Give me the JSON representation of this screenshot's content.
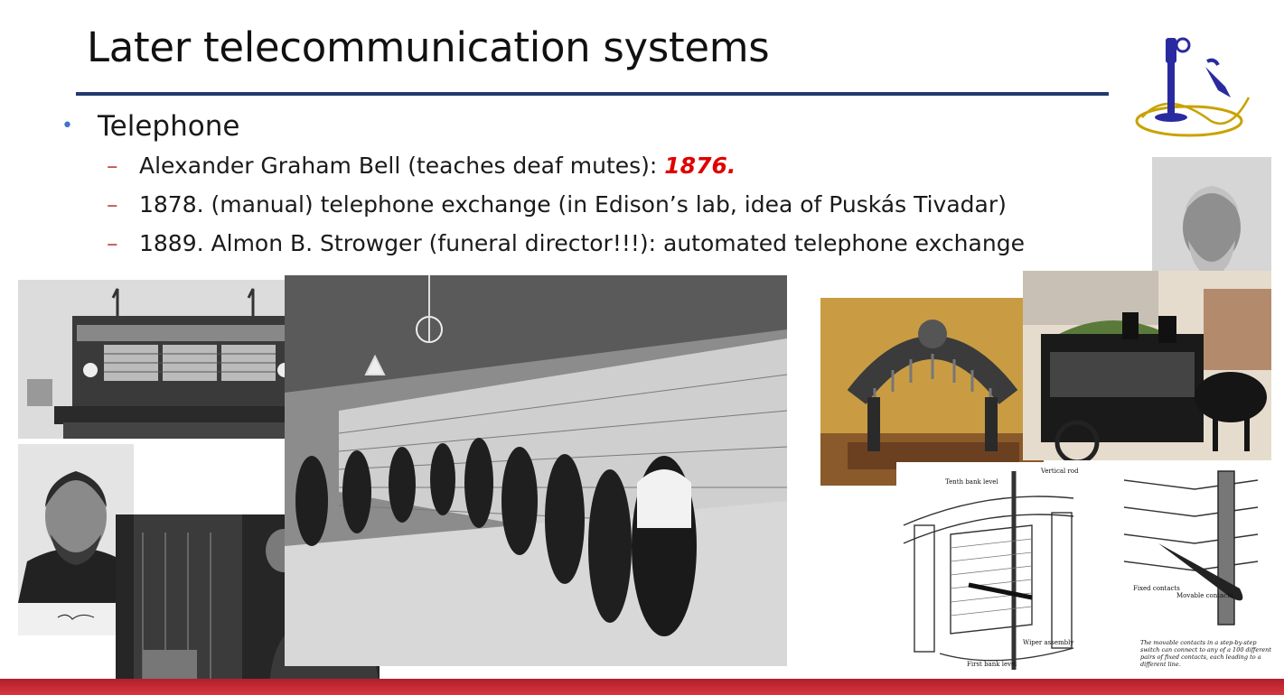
{
  "slide": {
    "title": "Later telecommunication systems",
    "bullet": "Telephone",
    "subbullets": [
      {
        "text": "Alexander Graham Bell (teaches deaf mutes): ",
        "year": "1876."
      },
      {
        "text": "1878. (manual) telephone exchange (in Edison’s lab, idea of Puskás Tivadar)"
      },
      {
        "text": "1889. Almon B. Strowger (funeral director!!!): automated telephone exchange"
      }
    ],
    "diagram_labels": {
      "tenth_bank_level": "Tenth bank level",
      "vertical_rod": "Vertical rod",
      "wiper_assembly": "Wiper assembly",
      "first_bank_level": "First bank level",
      "fixed_contacts": "Fixed contacts",
      "movable_contacts": "Movable contacts",
      "caption": "The movable contacts in a step-by-step switch can connect to any of a 100 different pairs of fixed contacts, each leading to a different line."
    }
  },
  "colors": {
    "title_rule": "#233a6e",
    "bullet_dot": "#4472c4",
    "dash": "#c0504d",
    "year_highlight": "#e00000",
    "bottom_bar": "#c62832"
  },
  "icons": {
    "bullet": "•",
    "dash": "–",
    "corner_logo": "candlestick-telephone-icon"
  }
}
